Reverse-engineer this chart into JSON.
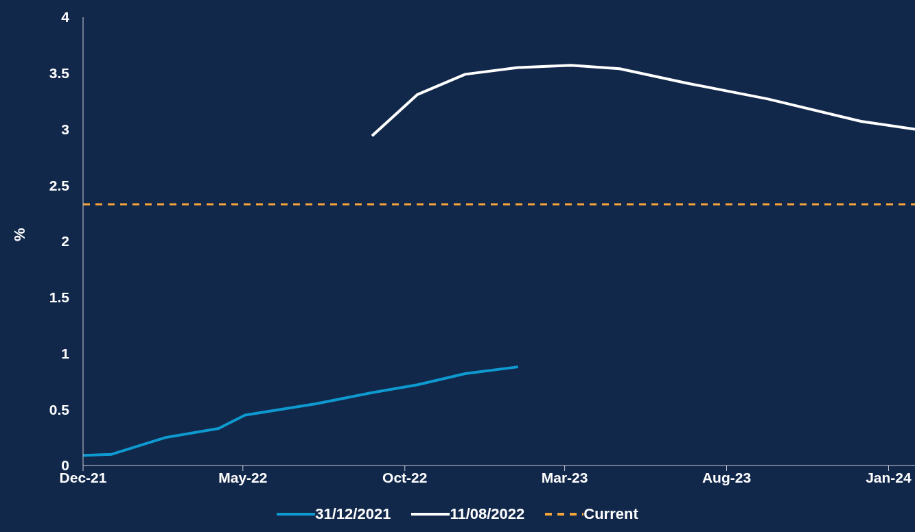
{
  "chart_data": {
    "type": "line",
    "ylabel": "%",
    "xlim": [
      "2021-12-01",
      "2024-01-26"
    ],
    "ylim": [
      0,
      4
    ],
    "xticks": [
      {
        "value": "2021-12-01",
        "label": "Dec-21"
      },
      {
        "value": "2022-05-01",
        "label": "May-22"
      },
      {
        "value": "2022-10-01",
        "label": "Oct-22"
      },
      {
        "value": "2023-03-01",
        "label": "Mar-23"
      },
      {
        "value": "2023-08-01",
        "label": "Aug-23"
      },
      {
        "value": "2024-01-01",
        "label": "Jan-24"
      }
    ],
    "yticks": [
      0,
      0.5,
      1,
      1.5,
      2,
      2.5,
      3,
      3.5,
      4
    ],
    "grid": false,
    "legend": "bottom",
    "marker": "none",
    "line_style": "solid",
    "series": [
      {
        "name": "31/12/2021",
        "color": "#0e9ad0",
        "x": [
          "2021-12-01",
          "2021-12-28",
          "2022-02-17",
          "2022-04-08",
          "2022-05-03",
          "2022-07-09",
          "2022-08-31",
          "2022-10-13",
          "2022-11-27",
          "2023-01-16"
        ],
        "values": [
          0.09,
          0.1,
          0.25,
          0.33,
          0.45,
          0.55,
          0.65,
          0.72,
          0.82,
          0.88
        ]
      },
      {
        "name": "11/08/2022",
        "color": "#ffffff",
        "x": [
          "2022-08-31",
          "2022-10-13",
          "2022-11-27",
          "2023-01-16",
          "2023-03-07",
          "2023-04-22",
          "2023-06-25",
          "2023-09-09",
          "2023-12-06",
          "2024-01-26"
        ],
        "values": [
          2.94,
          3.31,
          3.49,
          3.55,
          3.57,
          3.54,
          3.41,
          3.27,
          3.07,
          3.0
        ]
      }
    ],
    "ref_lines": [
      {
        "axis": "y",
        "value": 2.33,
        "label": "Current",
        "color": "#f5a33a",
        "line_style": "dashed"
      }
    ]
  }
}
